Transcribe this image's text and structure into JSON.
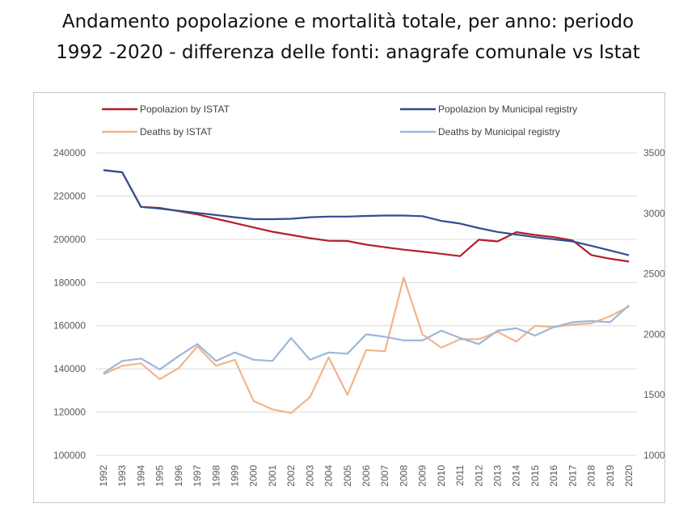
{
  "title_line1": "Andamento popolazione e mortalità totale, per anno: periodo",
  "title_line2": "1992 -2020 - differenza delle fonti: anagrafe comunale vs Istat",
  "chart_data": {
    "type": "line",
    "title": "Andamento popolazione e mortalità totale, per anno: periodo 1992 -2020 - differenza delle fonti: anagrafe comunale vs Istat",
    "categories": [
      "1992",
      "1993",
      "1994",
      "1995",
      "1996",
      "1997",
      "1998",
      "1999",
      "2000",
      "2001",
      "2002",
      "2003",
      "2004",
      "2005",
      "2006",
      "2007",
      "2008",
      "2009",
      "2010",
      "2011",
      "2012",
      "2013",
      "2014",
      "2015",
      "2016",
      "2017",
      "2018",
      "2019",
      "2020"
    ],
    "y_left": {
      "min": 100000,
      "max": 240000,
      "step": 20000,
      "ticks": [
        "100000",
        "120000",
        "140000",
        "160000",
        "180000",
        "200000",
        "220000",
        "240000"
      ]
    },
    "y_right": {
      "min": 1000,
      "max": 3500,
      "step": 500,
      "ticks": [
        "1000",
        "1500",
        "2000",
        "2500",
        "3000",
        "3500"
      ]
    },
    "grid": true,
    "legend_position": "top",
    "series": [
      {
        "name": "Popolazion by ISTAT",
        "axis": "left",
        "color": "#b2202a",
        "values": [
          232000,
          231000,
          215000,
          214500,
          213000,
          211500,
          209500,
          207500,
          205500,
          203500,
          202000,
          200500,
          199300,
          199200,
          197500,
          196300,
          195200,
          194300,
          193300,
          192200,
          199800,
          199000,
          203300,
          202000,
          201000,
          199500,
          192700,
          191000,
          189700
        ]
      },
      {
        "name": "Popolazion by Municipal registry",
        "axis": "left",
        "color": "#2f4f8e",
        "values": [
          232000,
          231000,
          215000,
          214200,
          213200,
          212200,
          211200,
          210200,
          209300,
          209300,
          209500,
          210200,
          210500,
          210500,
          210800,
          211000,
          211000,
          210700,
          208500,
          207300,
          205200,
          203400,
          202200,
          201000,
          200000,
          199000,
          197000,
          194800,
          192600
        ]
      },
      {
        "name": "Deaths by ISTAT",
        "axis": "right",
        "color": "#f2b48a",
        "values": [
          1670,
          1740,
          1760,
          1630,
          1720,
          1900,
          1740,
          1790,
          1450,
          1380,
          1350,
          1480,
          1810,
          1500,
          1870,
          1860,
          2470,
          2000,
          1890,
          1960,
          1960,
          2020,
          1940,
          2070,
          2060,
          2080,
          2090,
          2150,
          2230
        ]
      },
      {
        "name": "Deaths by Municipal registry",
        "axis": "right",
        "color": "#9db6db",
        "values": [
          1680,
          1780,
          1800,
          1710,
          1820,
          1920,
          1780,
          1850,
          1790,
          1780,
          1970,
          1790,
          1850,
          1840,
          2000,
          1980,
          1950,
          1950,
          2030,
          1970,
          1920,
          2030,
          2050,
          1990,
          2060,
          2100,
          2110,
          2100,
          2240
        ]
      }
    ]
  }
}
